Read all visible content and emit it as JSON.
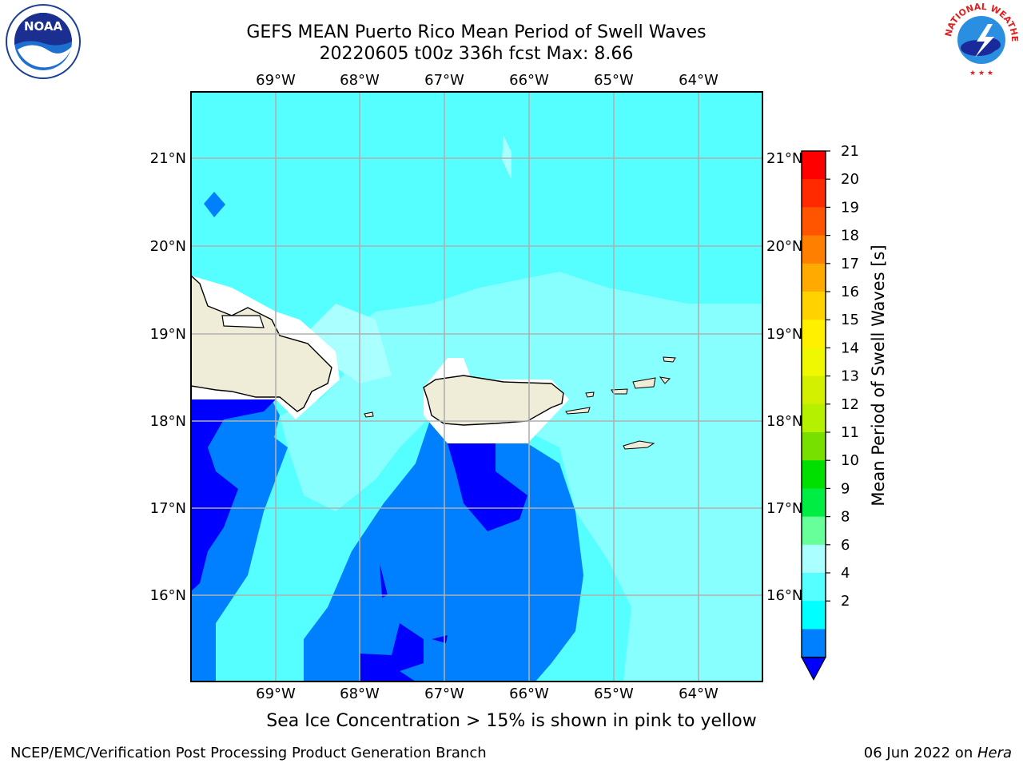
{
  "title": {
    "line1": "GEFS MEAN Puerto Rico Mean Period of Swell Waves",
    "line2": "20220605 t00z 336h fcst   Max: 8.66"
  },
  "map": {
    "lon_labels": [
      "69°W",
      "68°W",
      "67°W",
      "66°W",
      "65°W",
      "64°W"
    ],
    "lat_labels": [
      "21°N",
      "20°N",
      "19°N",
      "18°N",
      "17°N",
      "16°N"
    ]
  },
  "colorbar": {
    "label": "Mean Period of Swell Waves [s]",
    "ticks": [
      "21",
      "20",
      "19",
      "18",
      "17",
      "16",
      "15",
      "14",
      "13",
      "12",
      "11",
      "10",
      "9",
      "8",
      "6",
      "4",
      "2"
    ],
    "colors": [
      "#ff0000",
      "#ff2a00",
      "#ff5500",
      "#ff8000",
      "#ffaa00",
      "#ffd200",
      "#fff000",
      "#f0f800",
      "#d2f000",
      "#b4f000",
      "#78e000",
      "#00e000",
      "#00ee44",
      "#66ff99",
      "#aaffff",
      "#55ffff",
      "#00ffff",
      "#0080ff",
      "#0000ff"
    ]
  },
  "note": "Sea Ice Concentration > 15% is shown in pink to yellow",
  "footer": {
    "left": "NCEP/EMC/Verification Post Processing Product Generation Branch",
    "date": "06 Jun 2022 on ",
    "host": "Hera"
  },
  "logos": {
    "left": "NOAA",
    "right": "NATIONAL WEATHER SERVICE"
  }
}
